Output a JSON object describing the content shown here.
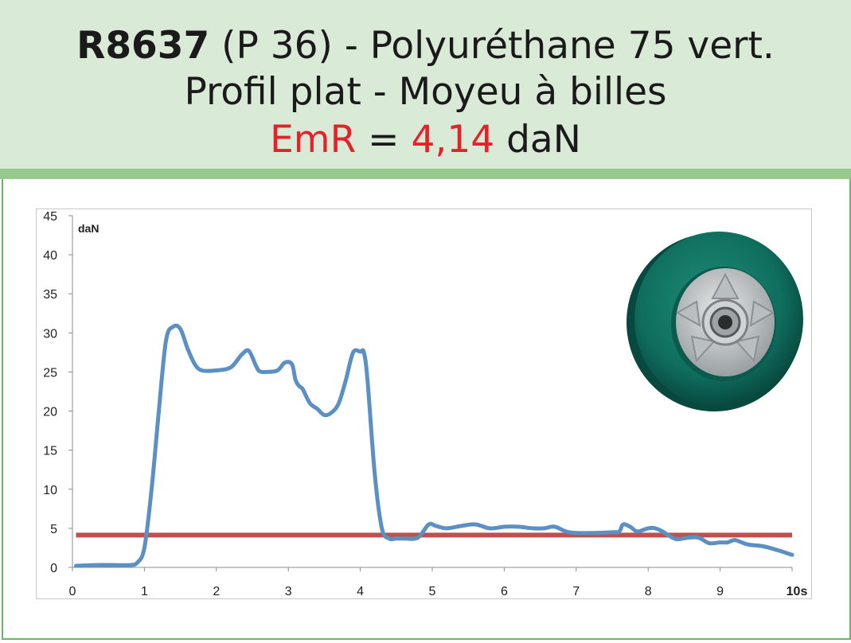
{
  "header": {
    "code": "R8637",
    "title_rest": " (P 36) - Polyuréthane 75 vert.",
    "line2": "Profil plat - Moyeu à billes",
    "emr_label": "EmR",
    "emr_eq": " = ",
    "emr_value": "4,14",
    "emr_unit": " daN"
  },
  "colors": {
    "header_bg": "#d9ead6",
    "accent_red": "#e3222a",
    "force_curve": "#5b90c4",
    "emr_line": "#c0504d",
    "frame_green": "#6cb667"
  },
  "product_image": {
    "icon": "wheel-icon"
  },
  "chart_data": {
    "type": "line",
    "ylabel": "daN",
    "xlabel": "",
    "xlim": [
      0,
      10
    ],
    "ylim": [
      0,
      45
    ],
    "x_ticks": [
      "0",
      "1",
      "2",
      "3",
      "4",
      "5",
      "6",
      "7",
      "8",
      "9",
      "10s"
    ],
    "y_ticks": [
      "0",
      "5",
      "10",
      "15",
      "20",
      "25",
      "30",
      "35",
      "40",
      "45"
    ],
    "grid": false,
    "series": [
      {
        "x": [
          0.05,
          0.3,
          0.6,
          0.8,
          0.9,
          1.0,
          1.1,
          1.2,
          1.3,
          1.4,
          1.5,
          1.6,
          1.7,
          1.8,
          2.0,
          2.2,
          2.35,
          2.45,
          2.55,
          2.6,
          2.7,
          2.85,
          2.95,
          3.05,
          3.1,
          3.15,
          3.2,
          3.3,
          3.4,
          3.5,
          3.6,
          3.7,
          3.8,
          3.9,
          4.0,
          4.05,
          4.1,
          4.2,
          4.3,
          4.4,
          4.5,
          4.6,
          4.8,
          4.95,
          5.05,
          5.2,
          5.4,
          5.6,
          5.8,
          6.0,
          6.2,
          6.4,
          6.55,
          6.7,
          6.9,
          7.2,
          7.5,
          7.6,
          7.65,
          7.75,
          7.85,
          8.0,
          8.1,
          8.2,
          8.3,
          8.4,
          8.55,
          8.7,
          8.85,
          9.0,
          9.1,
          9.2,
          9.3,
          9.4,
          9.6,
          9.8,
          10.0
        ],
        "values": [
          0.2,
          0.3,
          0.3,
          0.3,
          0.6,
          2.5,
          10,
          20,
          29,
          30.8,
          30.5,
          28,
          26,
          25.2,
          25.2,
          25.6,
          27.2,
          27.7,
          25.8,
          25.1,
          25,
          25.2,
          26.2,
          26,
          24,
          23.2,
          22.8,
          21,
          20.3,
          19.5,
          19.8,
          21,
          24,
          27.5,
          27.6,
          27.5,
          24,
          12,
          5,
          3.7,
          3.7,
          3.7,
          3.8,
          5.5,
          5.3,
          5.0,
          5.3,
          5.5,
          5.0,
          5.2,
          5.2,
          5.0,
          5.0,
          5.2,
          4.5,
          4.4,
          4.5,
          4.6,
          5.5,
          5.2,
          4.6,
          5.0,
          5.0,
          4.6,
          4.0,
          3.6,
          3.8,
          3.8,
          3.1,
          3.2,
          3.2,
          3.5,
          3.2,
          2.9,
          2.7,
          2.2,
          1.6
        ]
      },
      {
        "x": [
          0.05,
          10.0
        ],
        "values": [
          4.14,
          4.14
        ]
      }
    ]
  }
}
